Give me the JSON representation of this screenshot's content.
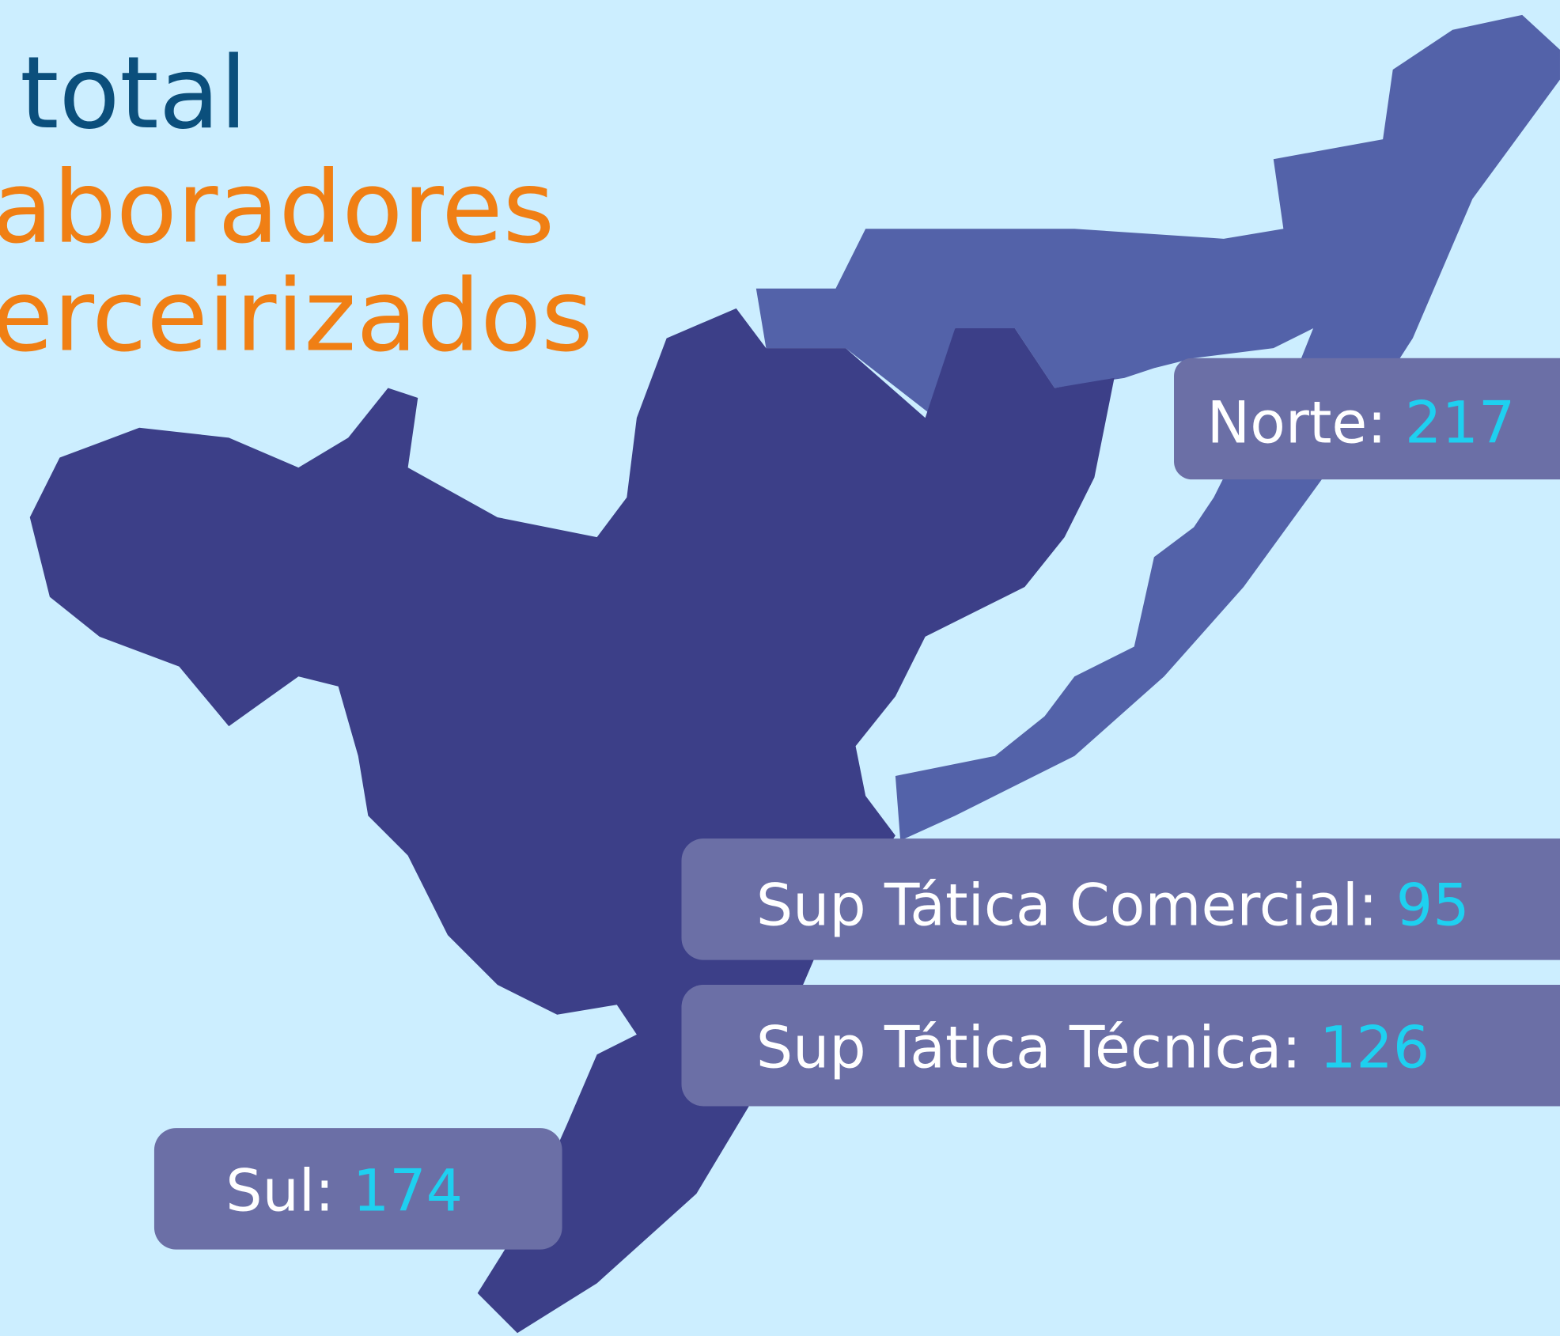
{
  "title_lines": [
    "total",
    "aboradores",
    "erceirizados"
  ],
  "regions": [
    {
      "label": "Norte:",
      "value": 217
    },
    {
      "label": "Sup Tática Comercial:",
      "value": 95
    },
    {
      "label": "Sup Tática Técnica:",
      "value": 126
    },
    {
      "label": "Sul:",
      "value": 174
    }
  ]
}
